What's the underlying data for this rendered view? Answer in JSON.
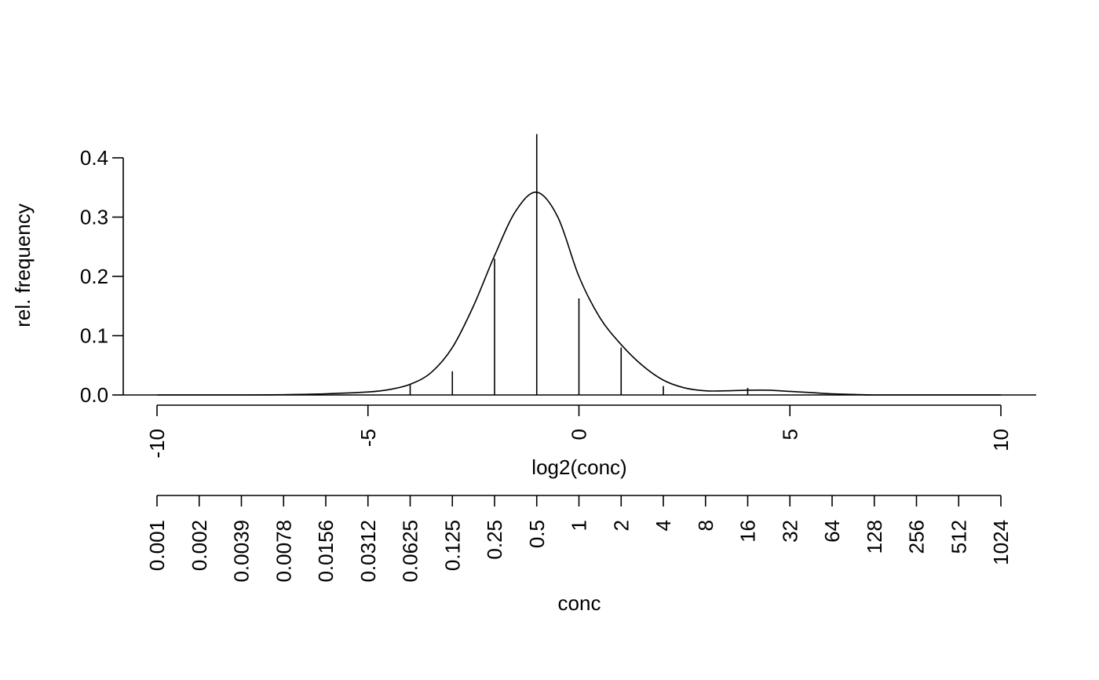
{
  "chart_data": {
    "type": "line",
    "title": "",
    "xlabel": "log2(conc)",
    "ylabel": "rel. frequency",
    "secondary_xlabel": "conc",
    "xlim": [
      -10,
      10
    ],
    "ylim": [
      0,
      0.4
    ],
    "grid": false,
    "legend": "none",
    "x_ticks": [
      {
        "value": -10,
        "label": "-10"
      },
      {
        "value": -5,
        "label": "-5"
      },
      {
        "value": 0,
        "label": "0"
      },
      {
        "value": 5,
        "label": "5"
      },
      {
        "value": 10,
        "label": "10"
      }
    ],
    "y_ticks": [
      {
        "value": 0.0,
        "label": "0.0"
      },
      {
        "value": 0.1,
        "label": "0.1"
      },
      {
        "value": 0.2,
        "label": "0.2"
      },
      {
        "value": 0.3,
        "label": "0.3"
      },
      {
        "value": 0.4,
        "label": "0.4"
      }
    ],
    "conc_ticks": [
      {
        "log2": -10,
        "label": "0.001"
      },
      {
        "log2": -9,
        "label": "0.002"
      },
      {
        "log2": -8,
        "label": "0.0039"
      },
      {
        "log2": -7,
        "label": "0.0078"
      },
      {
        "log2": -6,
        "label": "0.0156"
      },
      {
        "log2": -5,
        "label": "0.0312"
      },
      {
        "log2": -4,
        "label": "0.0625"
      },
      {
        "log2": -3,
        "label": "0.125"
      },
      {
        "log2": -2,
        "label": "0.25"
      },
      {
        "log2": -1,
        "label": "0.5"
      },
      {
        "log2": 0,
        "label": "1"
      },
      {
        "log2": 1,
        "label": "2"
      },
      {
        "log2": 2,
        "label": "4"
      },
      {
        "log2": 3,
        "label": "8"
      },
      {
        "log2": 4,
        "label": "16"
      },
      {
        "log2": 5,
        "label": "32"
      },
      {
        "log2": 6,
        "label": "64"
      },
      {
        "log2": 7,
        "label": "128"
      },
      {
        "log2": 8,
        "label": "256"
      },
      {
        "log2": 9,
        "label": "512"
      },
      {
        "log2": 10,
        "label": "1024"
      }
    ],
    "series": [
      {
        "type": "spikes",
        "x": [
          -4,
          -3,
          -2,
          -1,
          0,
          1,
          2,
          4
        ],
        "y": [
          0.017,
          0.04,
          0.23,
          0.44,
          0.163,
          0.08,
          0.015,
          0.012
        ]
      },
      {
        "type": "density-curve",
        "x": [
          -10,
          -8,
          -7,
          -6,
          -5,
          -4.5,
          -4,
          -3.5,
          -3,
          -2.5,
          -2,
          -1.5,
          -1,
          -0.5,
          0,
          0.5,
          1,
          1.5,
          2,
          2.5,
          3,
          3.5,
          4,
          4.5,
          5,
          5.5,
          6,
          6.5,
          7,
          8,
          10
        ],
        "y": [
          0.0,
          0.0,
          0.0005,
          0.002,
          0.005,
          0.009,
          0.018,
          0.038,
          0.08,
          0.15,
          0.235,
          0.31,
          0.342,
          0.3,
          0.2,
          0.13,
          0.085,
          0.05,
          0.025,
          0.012,
          0.007,
          0.007,
          0.008,
          0.008,
          0.006,
          0.004,
          0.002,
          0.001,
          0.0,
          0.0,
          0.0
        ]
      }
    ]
  }
}
